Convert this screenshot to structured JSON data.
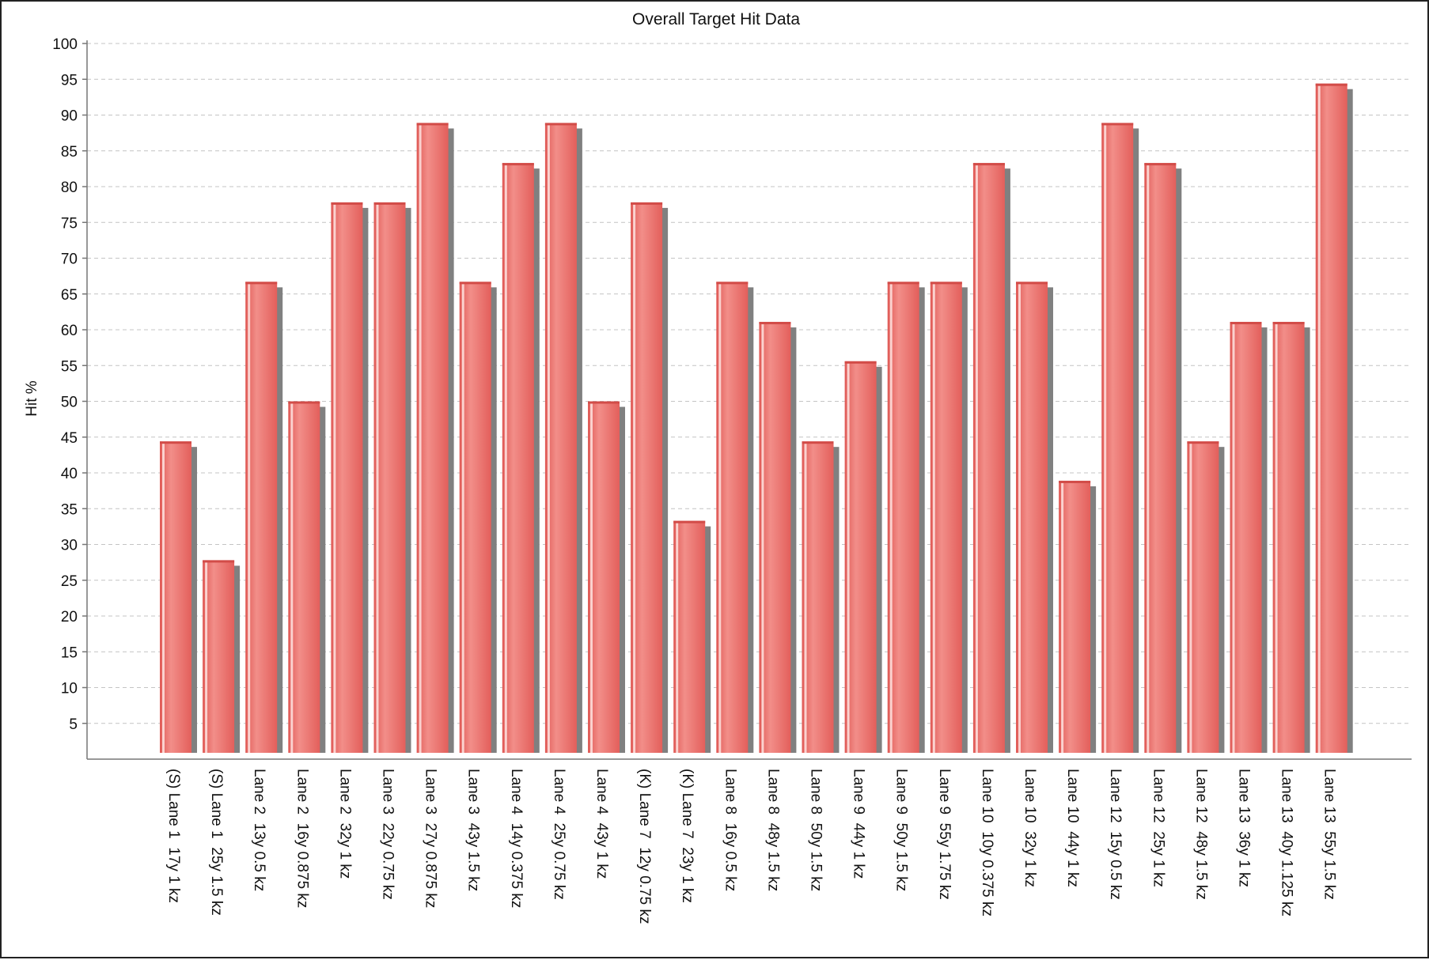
{
  "chart_data": {
    "type": "bar",
    "title": "Overall Target Hit Data",
    "xlabel": "",
    "ylabel": "Hit %",
    "ylim": [
      0,
      100
    ],
    "yticks": [
      5,
      10,
      15,
      20,
      25,
      30,
      35,
      40,
      45,
      50,
      55,
      60,
      65,
      70,
      75,
      80,
      85,
      90,
      95,
      100
    ],
    "grid": true,
    "legend": "none",
    "colors": {
      "bar": "#e8635f",
      "bar_highlight": "#f49a94",
      "bar_shadow": "#808080",
      "grid": "#c4c4c4"
    },
    "categories": [
      "(S) Lane 1  17y 1 kz",
      "(S) Lane 1  25y 1.5 kz",
      "Lane 2  13y 0.5 kz",
      "Lane 2  16y 0.875 kz",
      "Lane 2  32y 1 kz",
      "Lane 3  22y 0.75 kz",
      "Lane 3  27y 0.875 kz",
      "Lane 3  43y 1.5 kz",
      "Lane 4  14y 0.375 kz",
      "Lane 4  25y 0.75 kz",
      "Lane 4  43y 1 kz",
      "(K) Lane 7  12y 0.75 kz",
      "(K) Lane 7  23y 1 kz",
      "Lane 8  16y 0.5 kz",
      "Lane 8  48y 1.5 kz",
      "Lane 8  50y 1.5 kz",
      "Lane 9  44y 1 kz",
      "Lane 9  50y 1.5 kz",
      "Lane 9  55y 1.75 kz",
      "Lane 10  10y 0.375 kz",
      "Lane 10  32y 1 kz",
      "Lane 10  44y 1 kz",
      "Lane 12  15y 0.5 kz",
      "Lane 12  25y 1 kz",
      "Lane 12  48y 1.5 kz",
      "Lane 13  36y 1 kz",
      "Lane 13  40y 1.125 kz",
      "Lane 13  55y 1.5 kz"
    ],
    "series": [
      {
        "values": [
          44.4,
          27.8,
          66.7,
          50.0,
          77.8,
          77.8,
          88.9,
          66.7,
          83.3,
          88.9,
          50.0,
          77.8,
          33.3,
          66.7,
          61.1,
          44.4,
          55.6,
          66.7,
          66.7,
          83.3,
          66.7,
          38.9,
          88.9,
          83.3,
          44.4,
          61.1,
          61.1,
          94.4
        ]
      }
    ]
  }
}
